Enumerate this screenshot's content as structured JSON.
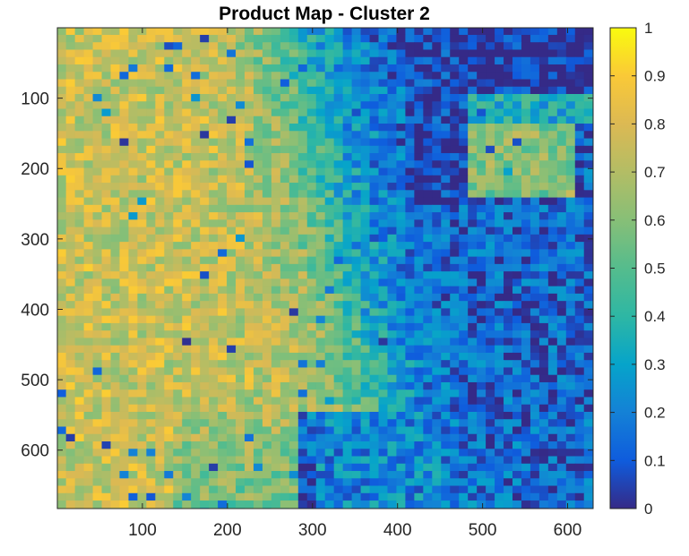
{
  "chart_data": {
    "type": "heatmap",
    "title": "Product Map - Cluster 2",
    "xlabel": "",
    "ylabel": "",
    "xlim": [
      0,
      630
    ],
    "ylim": [
      0,
      683
    ],
    "y_reversed": true,
    "x_ticks": [
      100,
      200,
      300,
      400,
      500,
      600
    ],
    "y_ticks": [
      100,
      200,
      300,
      400,
      500,
      600
    ],
    "colorbar": {
      "range": [
        0,
        1
      ],
      "ticks": [
        0,
        0.1,
        0.2,
        0.3,
        0.4,
        0.5,
        0.6,
        0.7,
        0.8,
        0.9,
        1
      ],
      "colormap": "parula",
      "position": "right"
    },
    "regions_mean_value": [
      {
        "region": "left / upper-left (x<300)",
        "value": 0.75
      },
      {
        "region": "upper-right dark blob (x 400–630, y 0–90)",
        "value": 0.02
      },
      {
        "region": "dark channel (x 410–480, y 90–250)",
        "value": 0.05
      },
      {
        "region": "right-middle green patch (x 480–600, y 140–240)",
        "value": 0.6
      },
      {
        "region": "lower-right (x>450, y>300)",
        "value": 0.12
      },
      {
        "region": "bottom band (x 300–450, y>550)",
        "value": 0.12
      },
      {
        "region": "transition zone (x 300–450)",
        "value": 0.45
      }
    ]
  }
}
